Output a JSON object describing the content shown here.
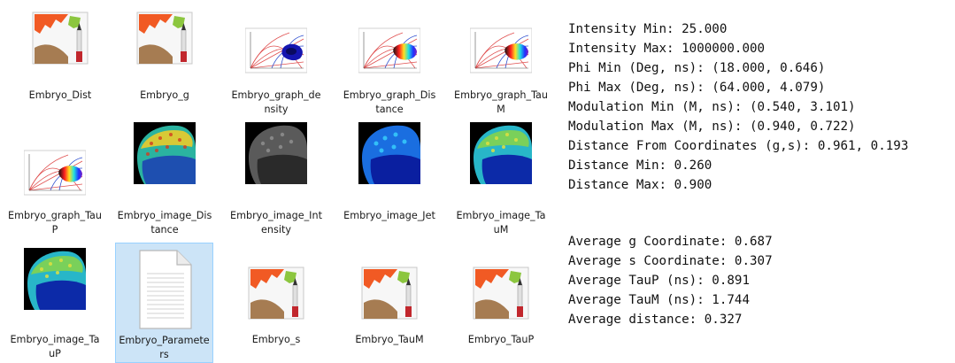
{
  "files": [
    {
      "name": "Embryo_Dist",
      "type": "image-app-icon"
    },
    {
      "name": "Embryo_g",
      "type": "image-app-icon"
    },
    {
      "name": "Embryo_graph_density",
      "type": "phasor-graph-thumbnail"
    },
    {
      "name": "Embryo_graph_Distance",
      "type": "phasor-graph-thumbnail"
    },
    {
      "name": "Embryo_graph_TauM",
      "type": "phasor-graph-thumbnail"
    },
    {
      "name": "Embryo_graph_TauP",
      "type": "phasor-graph-thumbnail"
    },
    {
      "name": "Embryo_image_Distance",
      "type": "embryo-image-thumbnail"
    },
    {
      "name": "Embryo_image_Intensity",
      "type": "embryo-image-thumbnail"
    },
    {
      "name": "Embryo_image_Jet",
      "type": "embryo-image-thumbnail"
    },
    {
      "name": "Embryo_image_TauM",
      "type": "embryo-image-thumbnail"
    },
    {
      "name": "Embryo_image_TauP",
      "type": "embryo-image-thumbnail"
    },
    {
      "name": "Embryo_Parameters",
      "type": "text-document-icon",
      "selected": true
    },
    {
      "name": "Embryo_s",
      "type": "image-app-icon"
    },
    {
      "name": "Embryo_TauM",
      "type": "image-app-icon"
    },
    {
      "name": "Embryo_TauP",
      "type": "image-app-icon"
    }
  ],
  "parameters": {
    "lines": [
      "Intensity Min: 25.000",
      "Intensity Max: 1000000.000",
      "Phi Min (Deg, ns): (18.000, 0.646)",
      "Phi Max (Deg, ns): (64.000, 4.079)",
      "Modulation Min (M, ns): (0.540, 3.101)",
      "Modulation Max (M, ns): (0.940, 0.722)",
      "Distance From Coordinates (g,s): 0.961, 0.193",
      "Distance Min: 0.260",
      "Distance Max: 0.900"
    ]
  },
  "averages": {
    "lines": [
      "Average g Coordinate: 0.687",
      "Average s Coordinate: 0.307",
      "Average TauP (ns): 0.891",
      "Average TauM (ns): 1.744",
      "Average distance: 0.327"
    ]
  },
  "colors": {
    "selection_bg": "#cce4f7",
    "selection_border": "#99d1ff"
  }
}
